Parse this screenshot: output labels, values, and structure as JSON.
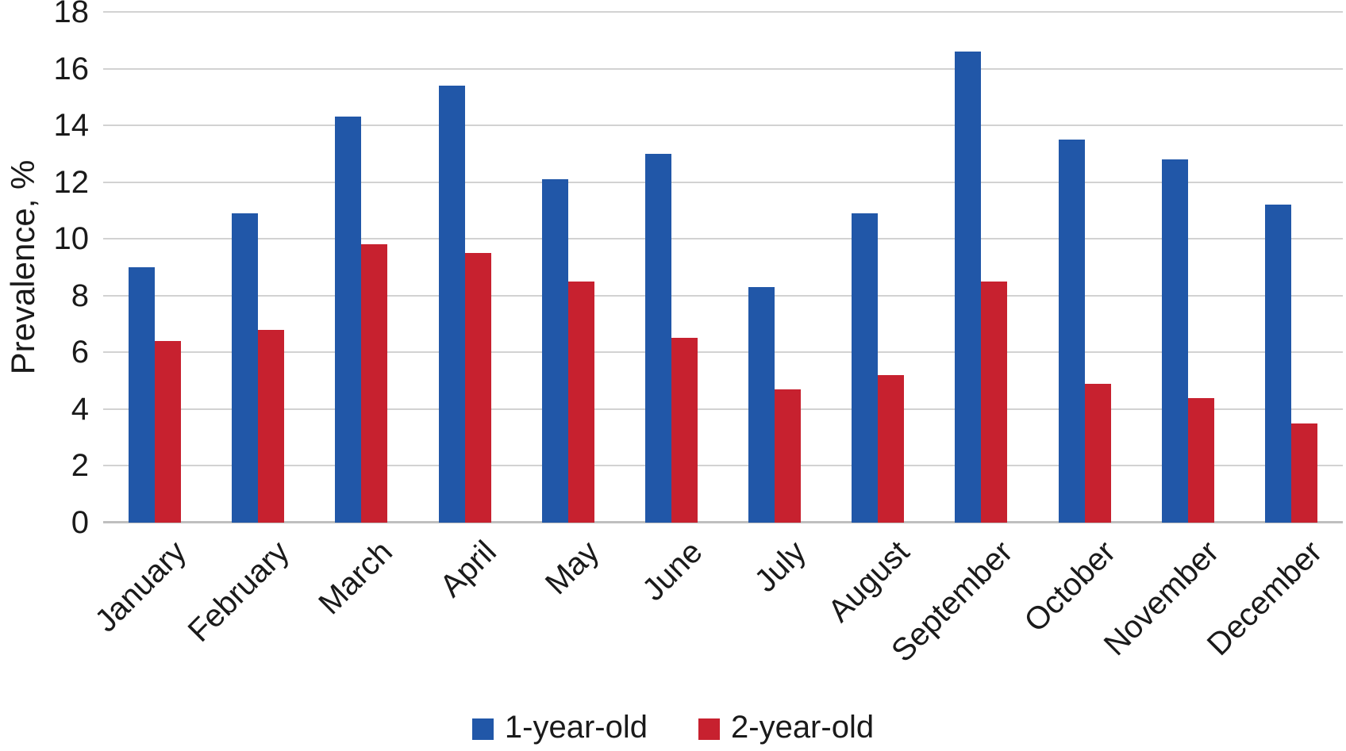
{
  "chart_data": {
    "type": "bar",
    "title": "",
    "ylabel": "Prevalence, %",
    "xlabel": "",
    "categories": [
      "January",
      "February",
      "March",
      "April",
      "May",
      "June",
      "July",
      "August",
      "September",
      "October",
      "November",
      "December"
    ],
    "series": [
      {
        "name": "1-year-old",
        "color": "#2157A8",
        "values": [
          9.0,
          10.9,
          14.3,
          15.4,
          12.1,
          13.0,
          8.3,
          10.9,
          16.6,
          13.5,
          12.8,
          11.2
        ]
      },
      {
        "name": "2-year-old",
        "color": "#C7212F",
        "values": [
          6.4,
          6.8,
          9.8,
          9.5,
          8.5,
          6.5,
          4.7,
          5.2,
          8.5,
          4.9,
          4.4,
          3.5
        ]
      }
    ],
    "ylim": [
      0,
      18
    ],
    "ytick_step": 2,
    "ytick_labels": [
      "0",
      "2",
      "4",
      "6",
      "8",
      "10",
      "12",
      "14",
      "16",
      "18"
    ],
    "grid": true,
    "gridline_color": "#D2D2D2",
    "axis_line_color": "#BFBFBF",
    "legend_position": "bottom"
  }
}
